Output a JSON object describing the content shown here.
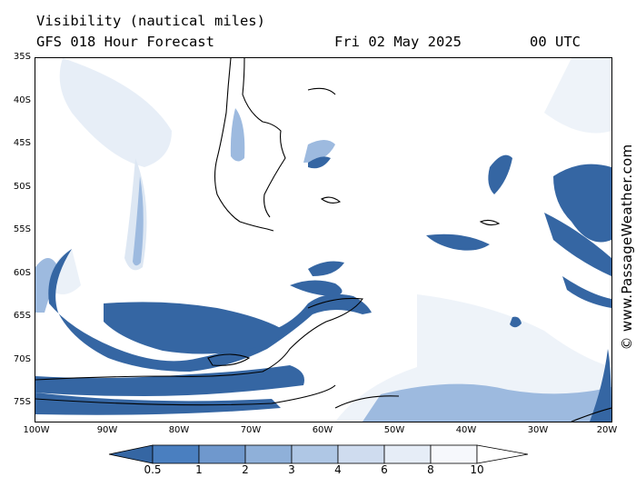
{
  "header": {
    "variable": "Visibility (nautical miles)",
    "model": "GFS 018 Hour Forecast",
    "date": "Fri 02 May 2025",
    "time": "00 UTC"
  },
  "watermark": "© www.PassageWeather.com",
  "axes": {
    "lat_labels": [
      "35S",
      "40S",
      "45S",
      "50S",
      "55S",
      "60S",
      "65S",
      "70S",
      "75S"
    ],
    "lon_labels": [
      "100W",
      "90W",
      "80W",
      "70W",
      "60W",
      "50W",
      "40W",
      "30W",
      "20W"
    ]
  },
  "colorbar": {
    "levels": [
      "0.5",
      "1",
      "2",
      "3",
      "4",
      "6",
      "8",
      "10"
    ],
    "colors": [
      "#3566a3",
      "#4a7fc0",
      "#6f98cd",
      "#8fb0d9",
      "#afc7e5",
      "#cfdcef",
      "#e6edf7",
      "#f6f8fc",
      "#ffffff"
    ]
  },
  "colors": {
    "low_vis": "#3566a3",
    "mid_vis": "#8fb0d9",
    "coast": "#000000"
  }
}
